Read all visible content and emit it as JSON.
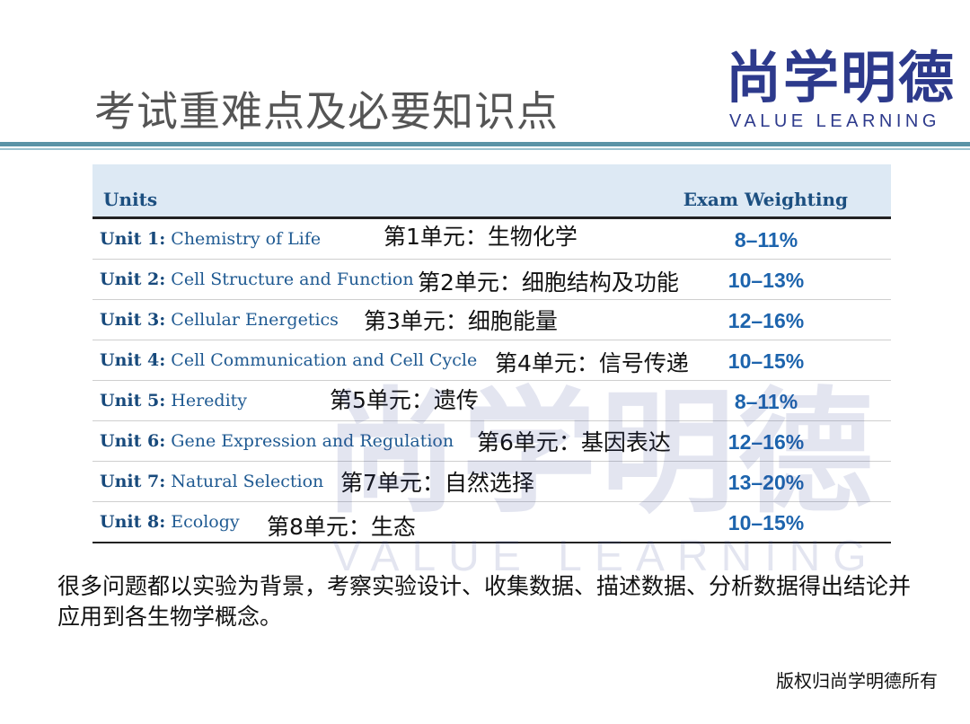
{
  "title": "考试重难点及必要知识点",
  "logo": {
    "chinese": "尚学明德",
    "english": "VALUE LEARNING"
  },
  "table": {
    "headers": {
      "units": "Units",
      "weighting": "Exam Weighting"
    },
    "rows": [
      {
        "unit_prefix": "Unit 1:",
        "unit_name": "Chemistry of Life",
        "cn": "第1单元：生物化学",
        "weight": "8–11%"
      },
      {
        "unit_prefix": "Unit 2:",
        "unit_name": "Cell Structure and Function",
        "cn": "第2单元：细胞结构及功能",
        "weight": "10–13%"
      },
      {
        "unit_prefix": "Unit 3:",
        "unit_name": "Cellular Energetics",
        "cn": "第3单元：细胞能量",
        "weight": "12–16%"
      },
      {
        "unit_prefix": "Unit 4:",
        "unit_name": "Cell Communication and Cell Cycle",
        "cn": "第4单元：信号传递",
        "weight": "10–15%"
      },
      {
        "unit_prefix": "Unit 5:",
        "unit_name": "Heredity",
        "cn": "第5单元：遗传",
        "weight": "8–11%"
      },
      {
        "unit_prefix": "Unit 6:",
        "unit_name": "Gene Expression and Regulation",
        "cn": "第6单元：基因表达",
        "weight": "12–16%"
      },
      {
        "unit_prefix": "Unit 7:",
        "unit_name": "Natural Selection",
        "cn": "第7单元：自然选择",
        "weight": "13–20%"
      },
      {
        "unit_prefix": "Unit 8:",
        "unit_name": "Ecology",
        "cn": "第8单元：生态",
        "weight": "10–15%"
      }
    ]
  },
  "body_text": "很多问题都以实验为背景，考察实验设计、收集数据、描述数据、分析数据得出结论并应用到各生物学概念。",
  "copyright": "版权归尚学明德所有",
  "colors": {
    "brand": "#2d3a8c",
    "header_bg": "#dde9f4",
    "unit_blue": "#1f5a92",
    "weight_blue": "#1d64ad",
    "rule": "#5a93a6"
  }
}
